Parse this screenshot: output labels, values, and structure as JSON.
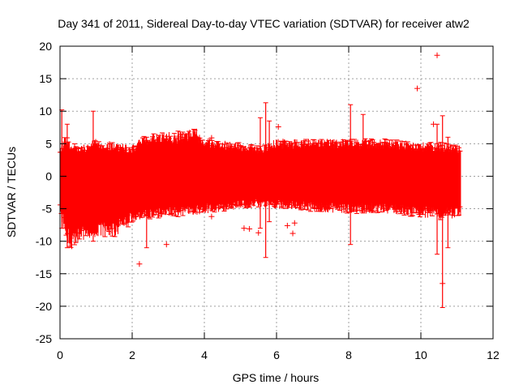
{
  "chart_data": {
    "type": "scatter",
    "title": "Day 341 of 2011, Sidereal Day-to-day VTEC variation (SDTVAR) for receiver atw2",
    "xlabel": "GPS time / hours",
    "ylabel": "SDTVAR / TECUs",
    "xlim": [
      0,
      12
    ],
    "ylim": [
      -25,
      20
    ],
    "x_ticks": [
      0,
      2,
      4,
      6,
      8,
      10,
      12
    ],
    "y_ticks": [
      -25,
      -20,
      -15,
      -10,
      -5,
      0,
      5,
      10,
      15,
      20
    ],
    "grid": true,
    "series_color": "#ff0000",
    "marker": "plus",
    "data_extent_hours": [
      0,
      11.1
    ],
    "envelope": [
      {
        "x": 0.0,
        "lo": -5.5,
        "hi": 4.5
      },
      {
        "x": 0.15,
        "lo": -9.0,
        "hi": 6.0
      },
      {
        "x": 0.3,
        "lo": -11.0,
        "hi": 5.0
      },
      {
        "x": 0.6,
        "lo": -9.5,
        "hi": 4.5
      },
      {
        "x": 1.0,
        "lo": -9.0,
        "hi": 5.5
      },
      {
        "x": 1.5,
        "lo": -9.0,
        "hi": 5.0
      },
      {
        "x": 2.0,
        "lo": -7.0,
        "hi": 4.5
      },
      {
        "x": 2.3,
        "lo": -6.5,
        "hi": 6.0
      },
      {
        "x": 3.0,
        "lo": -6.0,
        "hi": 6.5
      },
      {
        "x": 3.8,
        "lo": -5.8,
        "hi": 7.0
      },
      {
        "x": 4.0,
        "lo": -5.5,
        "hi": 5.5
      },
      {
        "x": 5.0,
        "lo": -4.8,
        "hi": 5.0
      },
      {
        "x": 5.6,
        "lo": -4.5,
        "hi": 4.5
      },
      {
        "x": 6.0,
        "lo": -4.8,
        "hi": 5.5
      },
      {
        "x": 7.0,
        "lo": -5.2,
        "hi": 5.5
      },
      {
        "x": 8.0,
        "lo": -5.5,
        "hi": 5.5
      },
      {
        "x": 9.0,
        "lo": -5.5,
        "hi": 5.5
      },
      {
        "x": 10.0,
        "lo": -6.0,
        "hi": 5.0
      },
      {
        "x": 10.6,
        "lo": -6.5,
        "hi": 5.0
      },
      {
        "x": 11.1,
        "lo": -6.0,
        "hi": 4.5
      }
    ],
    "spikes": [
      {
        "x": 0.05,
        "lo": -8,
        "hi": 10.2
      },
      {
        "x": 0.2,
        "lo": -11,
        "hi": 8
      },
      {
        "x": 0.92,
        "lo": -10,
        "hi": 10
      },
      {
        "x": 2.4,
        "lo": -11,
        "hi": 6
      },
      {
        "x": 5.55,
        "lo": -8,
        "hi": 9
      },
      {
        "x": 5.7,
        "lo": -12.5,
        "hi": 11.3
      },
      {
        "x": 5.8,
        "lo": -7,
        "hi": 8.5
      },
      {
        "x": 8.05,
        "lo": -10.5,
        "hi": 11
      },
      {
        "x": 8.4,
        "lo": -5,
        "hi": 9.5
      },
      {
        "x": 10.45,
        "lo": -12,
        "hi": 8
      },
      {
        "x": 10.6,
        "lo": -20.2,
        "hi": 9.3
      },
      {
        "x": 10.75,
        "lo": -11,
        "hi": 6
      }
    ],
    "outliers": [
      {
        "x": 10.45,
        "y": 18.6
      },
      {
        "x": 9.9,
        "y": 13.5
      },
      {
        "x": 2.2,
        "y": -13.5
      },
      {
        "x": 2.95,
        "y": -10.5
      },
      {
        "x": 4.2,
        "y": -6.2
      },
      {
        "x": 4.2,
        "y": 5.9
      },
      {
        "x": 6.45,
        "y": -8.8
      },
      {
        "x": 6.3,
        "y": -7.6
      },
      {
        "x": 6.5,
        "y": -7.2
      },
      {
        "x": 5.1,
        "y": -8.0
      },
      {
        "x": 5.25,
        "y": -8.1
      },
      {
        "x": 5.5,
        "y": -8.7
      },
      {
        "x": 10.6,
        "y": -16.5
      },
      {
        "x": 6.05,
        "y": 7.6
      },
      {
        "x": 10.35,
        "y": 8.0
      }
    ]
  }
}
